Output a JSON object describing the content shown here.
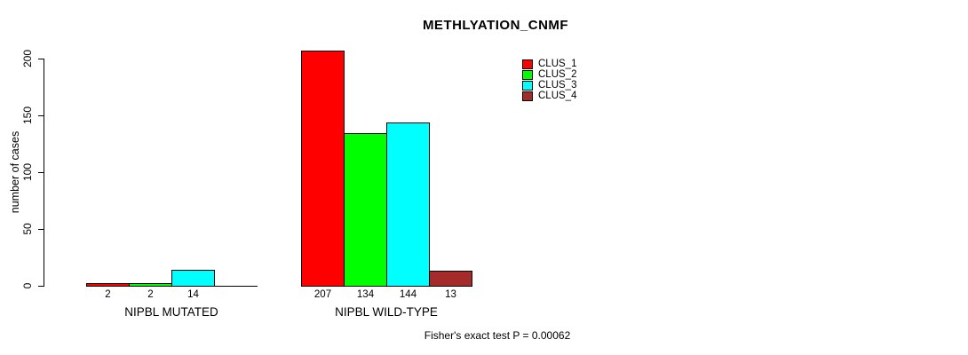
{
  "title": "METHLYATION_CNMF",
  "footer": "Fisher's exact test P = 0.00062",
  "y_axis": {
    "label": "number of cases",
    "ticks": [
      0,
      50,
      100,
      150,
      200
    ]
  },
  "legend": {
    "position": "top-right",
    "items": [
      {
        "label": "CLUS_1",
        "color": "#FF0000"
      },
      {
        "label": "CLUS_2",
        "color": "#00FF00"
      },
      {
        "label": "CLUS_3",
        "color": "#00FFFF"
      },
      {
        "label": "CLUS_4",
        "color": "#A52A2A"
      }
    ]
  },
  "chart_data": {
    "type": "bar",
    "title": "METHLYATION_CNMF",
    "xlabel": "",
    "ylabel": "number of cases",
    "ylim": [
      0,
      200
    ],
    "grid": false,
    "legend_position": "top-right",
    "categories": [
      "NIPBL MUTATED",
      "NIPBL WILD-TYPE"
    ],
    "series": [
      {
        "name": "CLUS_1",
        "color": "#FF0000",
        "values": [
          2,
          207
        ]
      },
      {
        "name": "CLUS_2",
        "color": "#00FF00",
        "values": [
          2,
          134
        ]
      },
      {
        "name": "CLUS_3",
        "color": "#00FFFF",
        "values": [
          14,
          144
        ]
      },
      {
        "name": "CLUS_4",
        "color": "#A52A2A",
        "values": [
          0,
          13
        ]
      }
    ],
    "bar_value_labels": [
      [
        "2",
        "2",
        "14",
        ""
      ],
      [
        "207",
        "134",
        "144",
        "13"
      ]
    ],
    "annotation": "Fisher's exact test P = 0.00062"
  }
}
